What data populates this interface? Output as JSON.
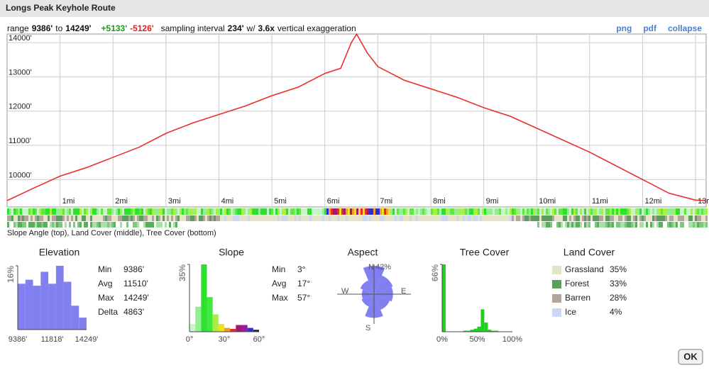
{
  "header": {
    "title": "Longs Peak Keyhole Route"
  },
  "summary": {
    "range_label": "range",
    "min": "9386'",
    "to": "to",
    "max": "14249'",
    "gain": "+5133'",
    "loss": "-5126'",
    "sampling_label": "sampling interval",
    "interval": "234'",
    "with": "w/",
    "exaggeration": "3.6x",
    "exaggeration_label": "vertical exaggeration"
  },
  "links": [
    "png",
    "pdf",
    "collapse"
  ],
  "profile": {
    "type": "line",
    "color": "#e8302a",
    "x": [
      0,
      0.5,
      1,
      1.5,
      2,
      2.5,
      3,
      3.5,
      4,
      4.5,
      5,
      5.5,
      6,
      6.3,
      6.5,
      6.6,
      6.8,
      7,
      7.5,
      8,
      8.5,
      9,
      9.5,
      10,
      10.5,
      11,
      11.5,
      12,
      12.5,
      13,
      13.2
    ],
    "values": [
      9386,
      9750,
      10100,
      10350,
      10650,
      10950,
      11350,
      11650,
      11900,
      12150,
      12450,
      12700,
      13100,
      13250,
      14000,
      14249,
      13700,
      13300,
      12900,
      12650,
      12400,
      12100,
      11850,
      11500,
      11150,
      10800,
      10400,
      10000,
      9600,
      9400,
      9386
    ],
    "xlim": [
      0,
      13.2
    ],
    "ylim": [
      9200,
      14250
    ],
    "xticks": [
      {
        "value": 1,
        "label": "1mi"
      },
      {
        "value": 2,
        "label": "2mi"
      },
      {
        "value": 3,
        "label": "3mi"
      },
      {
        "value": 4,
        "label": "4mi"
      },
      {
        "value": 5,
        "label": "5mi"
      },
      {
        "value": 6,
        "label": "6mi"
      },
      {
        "value": 7,
        "label": "7mi"
      },
      {
        "value": 8,
        "label": "8mi"
      },
      {
        "value": 9,
        "label": "9mi"
      },
      {
        "value": 10,
        "label": "10mi"
      },
      {
        "value": 11,
        "label": "11mi"
      },
      {
        "value": 12,
        "label": "12mi"
      },
      {
        "value": 13,
        "label": "13mi"
      }
    ],
    "yticks": [
      {
        "value": 10000,
        "label": "10000'"
      },
      {
        "value": 11000,
        "label": "11000'"
      },
      {
        "value": 12000,
        "label": "12000'"
      },
      {
        "value": 13000,
        "label": "13000'"
      },
      {
        "value": 14000,
        "label": "14000'"
      }
    ],
    "caption": "Slope Angle (top), Land Cover (middle), Tree Cover (bottom)"
  },
  "elevation": {
    "type": "bar",
    "title": "Elevation",
    "color": "#8080f0",
    "values": [
      11.5,
      12.5,
      11,
      14.5,
      11.5,
      16,
      12,
      6,
      3
    ],
    "ylim": [
      0,
      16
    ],
    "yticks": [
      {
        "value": 16,
        "label": "16%"
      }
    ],
    "xlabels": [
      "9386'",
      "11818'",
      "14249'"
    ],
    "stats": [
      [
        "Min",
        "9386'"
      ],
      [
        "Avg",
        "11510'"
      ],
      [
        "Max",
        "14249'"
      ],
      [
        "Delta",
        "4863'"
      ]
    ]
  },
  "slope": {
    "type": "bar",
    "title": "Slope",
    "values": [
      4,
      13,
      35,
      18,
      9,
      4,
      2,
      1.5,
      3.5,
      3.5,
      2,
      1
    ],
    "colors": [
      "#c8f5c8",
      "#90f090",
      "#30e030",
      "#40e840",
      "#a8f040",
      "#f0e020",
      "#f0a020",
      "#e03020",
      "#a01870",
      "#9020a0",
      "#3030d0",
      "#202020"
    ],
    "ylim": [
      0,
      35
    ],
    "yticks": [
      {
        "value": 35,
        "label": "35%"
      }
    ],
    "xlabels": [
      "0°",
      "30°",
      "60°"
    ],
    "stats": [
      [
        "Min",
        "3°"
      ],
      [
        "Avg",
        "17°"
      ],
      [
        "Max",
        "57°"
      ]
    ]
  },
  "aspect": {
    "type": "rose",
    "title": "Aspect",
    "color": "#8080f0",
    "directions": [
      "N",
      "NE",
      "E",
      "SE",
      "S",
      "SW",
      "W",
      "NW"
    ],
    "values": [
      42,
      30,
      28,
      25,
      35,
      20,
      18,
      22
    ],
    "max_label": "42%",
    "rmax": 42
  },
  "tree_cover": {
    "type": "bar",
    "title": "Tree Cover",
    "color": "#20d020",
    "values": [
      66,
      0,
      0,
      0,
      0,
      0,
      1,
      1,
      2,
      3,
      5,
      22,
      9,
      2,
      1,
      1,
      0,
      0,
      0,
      0
    ],
    "ylim": [
      0,
      66
    ],
    "yticks": [
      {
        "value": 66,
        "label": "66%"
      }
    ],
    "xlabels": [
      "0%",
      "50%",
      "100%"
    ]
  },
  "land_cover": {
    "title": "Land Cover",
    "items": [
      {
        "name": "Grassland",
        "pct": "35%",
        "color": "#e6e2c6"
      },
      {
        "name": "Forest",
        "pct": "33%",
        "color": "#5aa05a"
      },
      {
        "name": "Barren",
        "pct": "28%",
        "color": "#b2a69c"
      },
      {
        "name": "Ice",
        "pct": "4%",
        "color": "#cad8f4"
      }
    ]
  },
  "button": "OK"
}
